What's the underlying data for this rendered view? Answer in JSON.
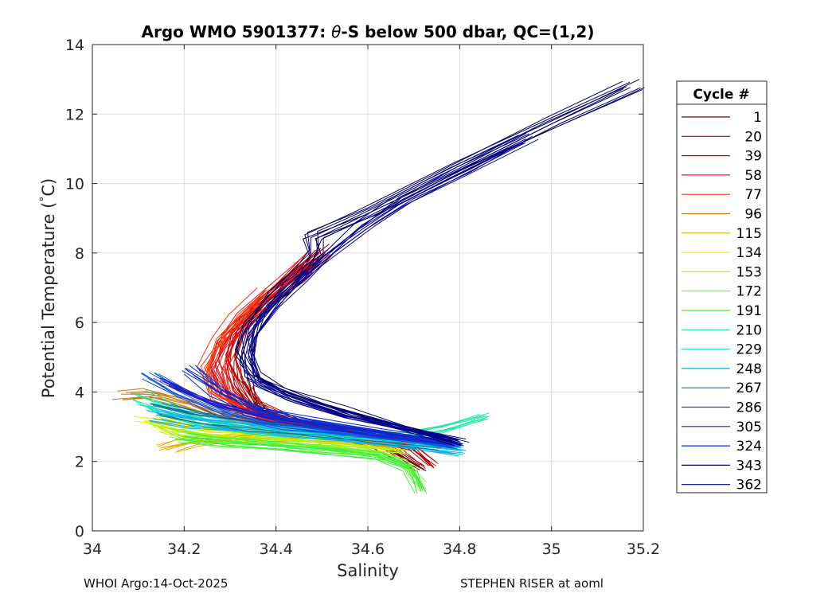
{
  "chart_data": {
    "type": "line",
    "title": "Argo WMO 5901377: θ-S below 500 dbar,  QC=(1,2)",
    "title_parts": {
      "prefix": "Argo WMO 5901377: ",
      "theta": "θ",
      "suffix": "-S below 500 dbar,  QC=(1,2)"
    },
    "xlabel": "Salinity",
    "ylabel_parts": {
      "main": "Potential Temperature (",
      "degree": "°",
      "unit": "C)"
    },
    "xlim": [
      34,
      35.2
    ],
    "ylim": [
      0,
      14
    ],
    "xticks": [
      34,
      34.2,
      34.4,
      34.6,
      34.8,
      35,
      35.2
    ],
    "xtick_labels": [
      "34",
      "34.2",
      "34.4",
      "34.6",
      "34.8",
      "35",
      "35.2"
    ],
    "yticks": [
      0,
      2,
      4,
      6,
      8,
      10,
      12,
      14
    ],
    "ytick_labels": [
      "0",
      "2",
      "4",
      "6",
      "8",
      "10",
      "12",
      "14"
    ],
    "grid": true,
    "legend": {
      "title": "Cycle #",
      "placement": "right-outside",
      "entries": [
        {
          "label": "1",
          "color": "#800000"
        },
        {
          "label": "20",
          "color": "#b00000"
        },
        {
          "label": "39",
          "color": "#dd0000"
        },
        {
          "label": "58",
          "color": "#f01010"
        },
        {
          "label": "77",
          "color": "#f03a10"
        },
        {
          "label": "96",
          "color": "#c87810"
        },
        {
          "label": "115",
          "color": "#e0b000"
        },
        {
          "label": "134",
          "color": "#f0f000"
        },
        {
          "label": "153",
          "color": "#c0f000"
        },
        {
          "label": "172",
          "color": "#80f030"
        },
        {
          "label": "191",
          "color": "#40f040"
        },
        {
          "label": "210",
          "color": "#20e8a0"
        },
        {
          "label": "229",
          "color": "#20e0d8"
        },
        {
          "label": "248",
          "color": "#10b0e0"
        },
        {
          "label": "267",
          "color": "#107090"
        },
        {
          "label": "286",
          "color": "#1050e0"
        },
        {
          "label": "305",
          "color": "#2020c0"
        },
        {
          "label": "324",
          "color": "#0828d0"
        },
        {
          "label": "343",
          "color": "#000060"
        },
        {
          "label": "362",
          "color": "#000090"
        }
      ]
    },
    "series": [
      {
        "name": "1",
        "x": [
          34.34,
          34.36,
          34.39,
          34.44,
          34.52,
          34.62,
          34.72
        ],
        "y": [
          4.3,
          3.7,
          3.3,
          3.0,
          2.8,
          2.55,
          1.8
        ]
      },
      {
        "name": "20",
        "x": [
          34.51,
          34.44,
          34.38,
          34.33,
          34.31,
          34.32,
          34.36,
          34.46,
          34.58,
          34.68,
          34.74
        ],
        "y": [
          8.1,
          7.3,
          6.6,
          5.8,
          5.0,
          4.3,
          3.6,
          3.05,
          2.8,
          2.6,
          1.9
        ]
      },
      {
        "name": "39",
        "x": [
          34.49,
          34.42,
          34.35,
          34.3,
          34.28,
          34.3,
          34.35,
          34.45,
          34.58,
          34.7
        ],
        "y": [
          7.9,
          7.1,
          6.3,
          5.6,
          4.8,
          4.0,
          3.4,
          3.0,
          2.75,
          2.4
        ]
      },
      {
        "name": "58",
        "x": [
          34.47,
          34.4,
          34.33,
          34.29,
          34.27,
          34.29,
          34.34,
          34.44,
          34.56,
          34.68
        ],
        "y": [
          7.8,
          7.0,
          6.2,
          5.4,
          4.7,
          4.0,
          3.45,
          3.05,
          2.8,
          2.5
        ]
      },
      {
        "name": "77",
        "x": [
          34.38,
          34.32,
          34.28,
          34.25,
          34.27,
          34.33,
          34.42,
          34.55,
          34.66
        ],
        "y": [
          6.8,
          6.1,
          5.4,
          4.6,
          3.9,
          3.4,
          3.05,
          2.8,
          2.55
        ]
      },
      {
        "name": "96",
        "x": [
          34.07,
          34.13,
          34.2,
          34.28,
          34.37,
          34.48,
          34.58
        ],
        "y": [
          3.9,
          3.95,
          3.7,
          3.35,
          3.1,
          2.9,
          2.75
        ]
      },
      {
        "name": "115",
        "x": [
          34.16,
          34.21,
          34.26,
          34.34,
          34.45,
          34.56,
          34.66
        ],
        "y": [
          2.45,
          2.6,
          2.7,
          2.75,
          2.7,
          2.6,
          2.45
        ]
      },
      {
        "name": "134",
        "x": [
          34.12,
          34.18,
          34.26,
          34.36,
          34.47,
          34.58
        ],
        "y": [
          3.2,
          3.1,
          2.95,
          2.85,
          2.75,
          2.6
        ]
      },
      {
        "name": "153",
        "x": [
          34.14,
          34.2,
          34.28,
          34.38,
          34.5,
          34.6,
          34.68
        ],
        "y": [
          3.0,
          2.8,
          2.7,
          2.6,
          2.5,
          2.4,
          2.3
        ]
      },
      {
        "name": "172",
        "x": [
          34.18,
          34.26,
          34.36,
          34.48,
          34.6,
          34.68,
          34.72
        ],
        "y": [
          2.8,
          2.6,
          2.5,
          2.4,
          2.25,
          2.0,
          1.3
        ]
      },
      {
        "name": "191",
        "x": [
          34.2,
          34.3,
          34.4,
          34.52,
          34.62,
          34.69,
          34.72
        ],
        "y": [
          2.7,
          2.55,
          2.45,
          2.3,
          2.15,
          1.8,
          1.15
        ]
      },
      {
        "name": "210",
        "x": [
          34.1,
          34.17,
          34.26,
          34.38,
          34.52,
          34.66,
          34.76,
          34.85
        ],
        "y": [
          3.9,
          3.5,
          3.15,
          2.9,
          2.75,
          2.75,
          2.95,
          3.3
        ]
      },
      {
        "name": "229",
        "x": [
          34.12,
          34.2,
          34.3,
          34.42,
          34.56,
          34.7,
          34.8
        ],
        "y": [
          3.6,
          3.3,
          3.05,
          2.85,
          2.7,
          2.5,
          2.35
        ]
      },
      {
        "name": "248",
        "x": [
          34.14,
          34.22,
          34.33,
          34.46,
          34.6,
          34.72,
          34.8
        ],
        "y": [
          3.3,
          3.1,
          2.95,
          2.8,
          2.6,
          2.4,
          2.25
        ]
      },
      {
        "name": "267",
        "x": [
          34.15,
          34.24,
          34.36,
          34.5,
          34.64,
          34.76
        ],
        "y": [
          3.5,
          3.25,
          3.05,
          2.85,
          2.65,
          2.45
        ]
      },
      {
        "name": "286",
        "x": [
          34.13,
          34.2,
          34.3,
          34.42,
          34.56,
          34.7,
          34.8
        ],
        "y": [
          4.45,
          3.9,
          3.35,
          3.0,
          2.8,
          2.6,
          2.4
        ]
      },
      {
        "name": "305",
        "x": [
          34.16,
          34.26,
          34.38,
          34.52,
          34.66,
          34.78
        ],
        "y": [
          4.3,
          3.7,
          3.3,
          3.0,
          2.75,
          2.55
        ]
      },
      {
        "name": "324",
        "x": [
          34.21,
          34.28,
          34.36,
          34.48,
          34.62,
          34.76
        ],
        "y": [
          4.65,
          4.0,
          3.5,
          3.15,
          2.85,
          2.6
        ]
      },
      {
        "name": "343",
        "x": [
          35.18,
          35.0,
          34.8,
          34.6,
          34.48,
          34.48,
          34.46,
          34.4,
          34.35,
          34.33,
          34.35,
          34.42,
          34.54,
          34.68,
          34.8
        ],
        "y": [
          12.85,
          11.8,
          10.5,
          9.2,
          8.5,
          8.0,
          7.5,
          6.8,
          6.0,
          5.2,
          4.5,
          4.0,
          3.5,
          3.0,
          2.55
        ]
      },
      {
        "name": "362",
        "x": [
          34.95,
          34.8,
          34.68,
          34.6,
          34.52,
          34.45,
          34.39,
          34.35,
          34.34,
          34.36,
          34.44,
          34.56,
          34.7,
          34.81
        ],
        "y": [
          11.3,
          10.3,
          9.5,
          8.8,
          8.0,
          7.2,
          6.4,
          5.6,
          4.9,
          4.3,
          3.8,
          3.3,
          2.9,
          2.55
        ]
      }
    ]
  },
  "footer": {
    "left": "WHOI Argo:14-Oct-2025",
    "right": "STEPHEN RISER at aoml"
  }
}
